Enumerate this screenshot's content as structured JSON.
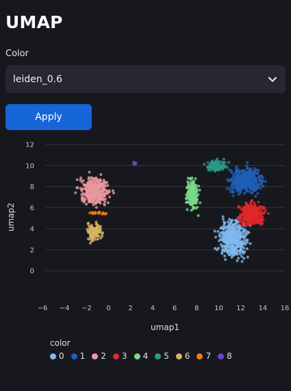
{
  "page": {
    "title": "UMAP"
  },
  "color_select": {
    "label": "Color",
    "value": "leiden_0.6"
  },
  "apply_button": {
    "label": "Apply"
  },
  "chart_data": {
    "type": "scatter",
    "xlabel": "umap1",
    "ylabel": "umap2",
    "xlim": [
      -6,
      16
    ],
    "ylim": [
      -1,
      12
    ],
    "x_ticks": [
      -6,
      -4,
      -2,
      0,
      2,
      4,
      6,
      8,
      10,
      12,
      14,
      16
    ],
    "y_ticks": [
      0,
      2,
      4,
      6,
      8,
      10,
      12
    ],
    "x_tick_labels": [
      "−6",
      "−4",
      "−2",
      "0",
      "2",
      "4",
      "6",
      "8",
      "10",
      "12",
      "14",
      "16"
    ],
    "y_tick_labels": [
      "0",
      "2",
      "4",
      "6",
      "8",
      "10",
      "12"
    ],
    "grid": "horizontal",
    "legend_title": "color",
    "legend_position": "bottom-left",
    "series": [
      {
        "name": "0",
        "color": "#80b9ee",
        "center": [
          11.3,
          3.0
        ],
        "spread": [
          1.2,
          1.6
        ],
        "n_points": 420
      },
      {
        "name": "1",
        "color": "#1f5fb7",
        "center": [
          12.5,
          8.6
        ],
        "spread": [
          1.3,
          1.1
        ],
        "n_points": 420
      },
      {
        "name": "2",
        "color": "#e8999e",
        "center": [
          -1.3,
          7.6
        ],
        "spread": [
          1.2,
          1.2
        ],
        "n_points": 380
      },
      {
        "name": "3",
        "color": "#e0282a",
        "center": [
          13.0,
          5.4
        ],
        "spread": [
          1.1,
          1.0
        ],
        "n_points": 300
      },
      {
        "name": "4",
        "color": "#7bd88d",
        "center": [
          7.6,
          7.3
        ],
        "spread": [
          0.45,
          1.3
        ],
        "n_points": 200
      },
      {
        "name": "5",
        "color": "#2a9a86",
        "center": [
          9.8,
          10.0
        ],
        "spread": [
          0.8,
          0.45
        ],
        "n_points": 130
      },
      {
        "name": "6",
        "color": "#d6b461",
        "center": [
          -1.3,
          3.7
        ],
        "spread": [
          0.6,
          0.8
        ],
        "n_points": 120
      },
      {
        "name": "7",
        "color": "#f07d12",
        "center": [
          -0.9,
          5.5
        ],
        "spread": [
          0.8,
          0.12
        ],
        "n_points": 22
      },
      {
        "name": "8",
        "color": "#6e44be",
        "center": [
          2.4,
          10.2
        ],
        "spread": [
          0.18,
          0.15
        ],
        "n_points": 10
      }
    ]
  }
}
